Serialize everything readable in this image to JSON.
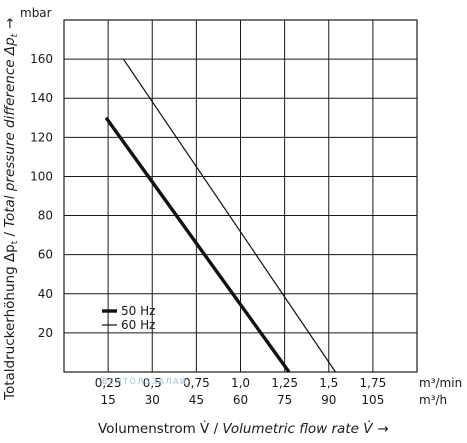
{
  "chart_data": {
    "type": "line",
    "y_unit": "mbar",
    "ylim": [
      0,
      180
    ],
    "y_ticks": [
      20,
      40,
      60,
      80,
      100,
      120,
      140,
      160
    ],
    "y_tick_labels": [
      "20",
      "40",
      "60",
      "80",
      "100",
      "120",
      "140",
      "160"
    ],
    "x_unit_top": "m³/min",
    "x_unit_bottom": "m³/h",
    "x_ticks_top": [
      "0,25",
      "0,5",
      "0,75",
      "1,0",
      "1,25",
      "1,5",
      "1,75"
    ],
    "x_ticks_bottom": [
      "15",
      "30",
      "45",
      "60",
      "75",
      "90",
      "105"
    ],
    "xlim": [
      0,
      120
    ],
    "xlabel_plain": "Volumenstrom V̇ / ",
    "xlabel_italic": "Volumetric flow rate V̇",
    "xlabel_arrow": "→",
    "ylabel_plain": "Totaldruckerhöhung Δp",
    "ylabel_plain_sub": "t",
    "ylabel_sep": " / ",
    "ylabel_italic": "Total pressure difference Δp",
    "ylabel_italic_sub": "t",
    "ylabel_arrow": "→",
    "grid": true,
    "legend_position": "bottom-left",
    "series": [
      {
        "name": "50 Hz",
        "color": "#111111",
        "width": "thick",
        "x": [
          14.3,
          76.5
        ],
        "y": [
          130,
          0
        ]
      },
      {
        "name": "60 Hz",
        "color": "#111111",
        "width": "thin",
        "x": [
          20.2,
          92.3
        ],
        "y": [
          160,
          0
        ]
      }
    ],
    "watermark": "ВЕНТОЛЭЗАЛАЙ"
  }
}
